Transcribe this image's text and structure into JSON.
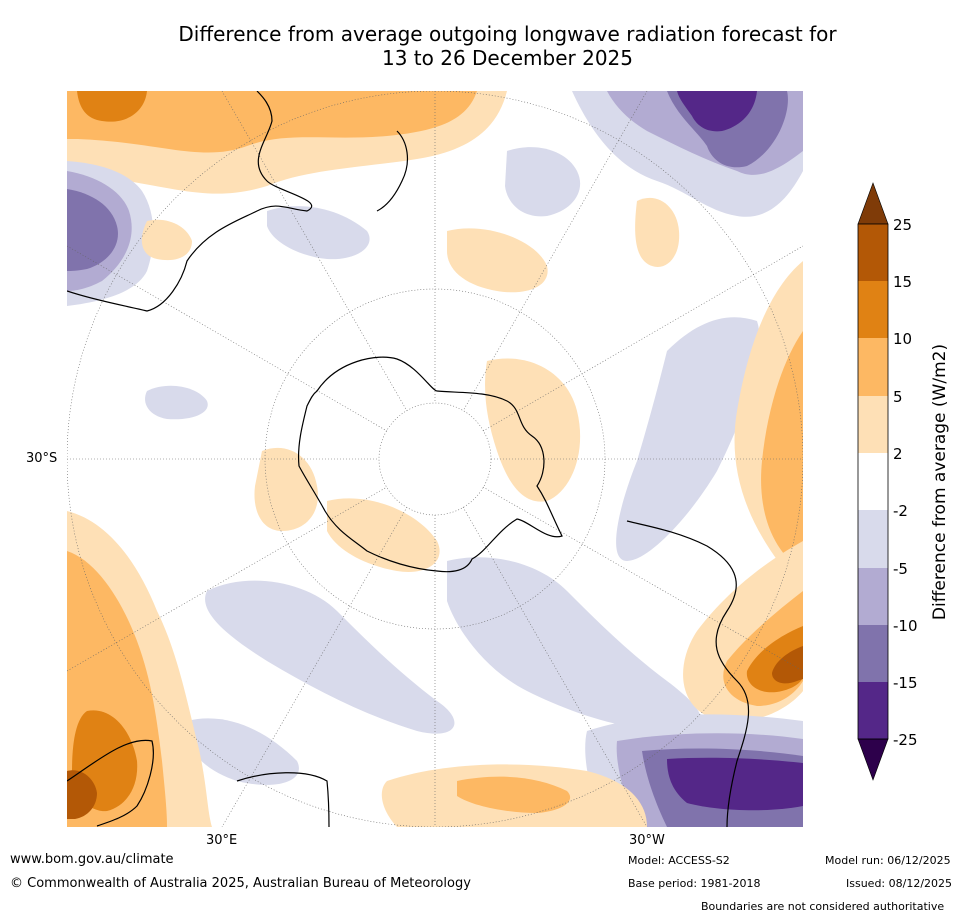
{
  "title": {
    "line1": "Difference from average outgoing longwave radiation forecast for",
    "line2": "13 to 26 December 2025"
  },
  "map": {
    "projection": "south-polar-stereographic",
    "lat_label": "30°S",
    "lon_labels": {
      "east": "30°E",
      "west": "30°W"
    },
    "note": "Boundaries are not considered authoritative"
  },
  "colorbar": {
    "label": "Difference from average (W/m2)",
    "ticks": [
      "25",
      "15",
      "10",
      "5",
      "2",
      "-2",
      "-5",
      "-10",
      "-15",
      "-25"
    ],
    "colors": {
      "over": "#7f3b08",
      "p15_25": "#b35806",
      "p10_15": "#e08214",
      "p5_10": "#fdb863",
      "p2_5": "#fee0b6",
      "neutral": "#ffffff",
      "m2_5": "#d8daeb",
      "m5_10": "#b2abd2",
      "m10_15": "#8073ac",
      "m15_25": "#542788",
      "under": "#2d004b"
    }
  },
  "footer": {
    "url": "www.bom.gov.au/climate",
    "copyright": "© Commonwealth of Australia 2025, Australian Bureau of Meteorology",
    "model": "Model: ACCESS-S2",
    "base_period": "Base period: 1981-2018",
    "model_run": "Model run: 06/12/2025",
    "issued": "Issued: 08/12/2025",
    "disclaimer": "Boundaries are not considered authoritative"
  }
}
